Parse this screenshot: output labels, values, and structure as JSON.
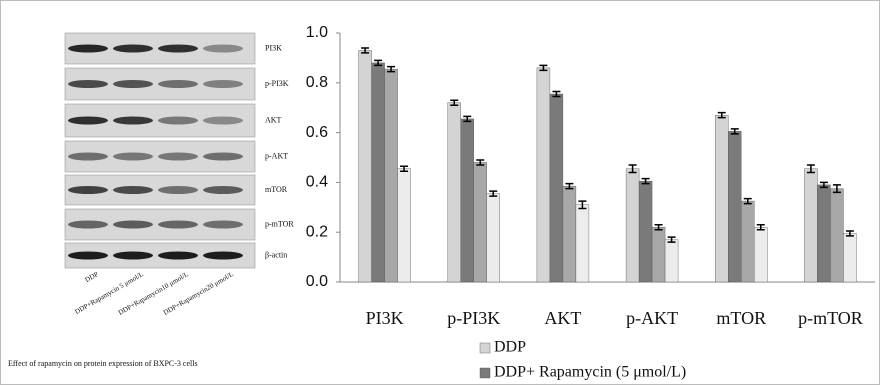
{
  "chart_data": {
    "type": "bar",
    "categories": [
      "PI3K",
      "p-PI3K",
      "AKT",
      "p-AKT",
      "mTOR",
      "p-mTOR"
    ],
    "series": [
      {
        "name": "DDP",
        "color": "#d4d4d4",
        "values": [
          0.93,
          0.72,
          0.86,
          0.455,
          0.67,
          0.455
        ],
        "errors": [
          0.01,
          0.01,
          0.01,
          0.015,
          0.01,
          0.015
        ]
      },
      {
        "name": "DDP+ Rapamycin (5 μmol/L)",
        "color": "#7a7a7a",
        "values": [
          0.88,
          0.655,
          0.755,
          0.405,
          0.605,
          0.39
        ],
        "errors": [
          0.01,
          0.01,
          0.01,
          0.01,
          0.01,
          0.01
        ]
      },
      {
        "color": "#a8a8a8",
        "values": [
          0.855,
          0.48,
          0.385,
          0.22,
          0.325,
          0.375
        ],
        "errors": [
          0.01,
          0.01,
          0.01,
          0.01,
          0.01,
          0.015
        ]
      },
      {
        "color": "#ececec",
        "values": [
          0.455,
          0.355,
          0.31,
          0.17,
          0.22,
          0.195
        ],
        "errors": [
          0.01,
          0.01,
          0.015,
          0.01,
          0.01,
          0.01
        ]
      }
    ],
    "ylim": [
      0,
      1
    ],
    "yticks": [
      {
        "value": 0,
        "label": "0.0"
      },
      0.2,
      0.4,
      0.6,
      0.8,
      {
        "value": 1,
        "label": "1.0"
      }
    ]
  },
  "blot": {
    "rows": [
      "PI3K",
      "p-PI3K",
      "AKT",
      "p-AKT",
      "mTOR",
      "p-mTOR",
      "β-actin"
    ],
    "lanes": [
      "DDP",
      "DDP+Rapamycin 5 μmol/L",
      "DDP+Rapamycin10 μmol/L",
      "DDP+Rapamycin20 μmol/L"
    ],
    "caption": "Effect of rapamycin on protein expression of BXPC-3 cells"
  }
}
